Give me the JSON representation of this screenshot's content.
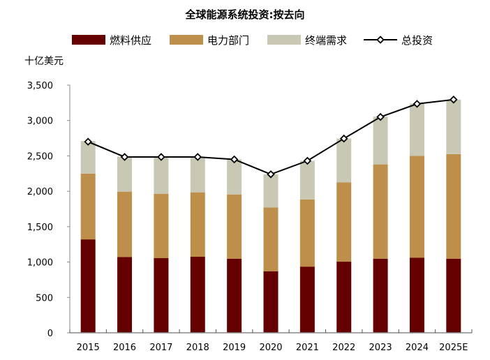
{
  "chart_data": {
    "type": "bar",
    "stacked": true,
    "title": "全球能源系统投资:按去向",
    "ylabel": "十亿美元",
    "ylim": [
      0,
      3500
    ],
    "yticks": [
      0,
      500,
      1000,
      1500,
      2000,
      2500,
      3000,
      3500
    ],
    "ytick_labels": [
      "0",
      "500",
      "1,000",
      "1,500",
      "2,000",
      "2,500",
      "3,000",
      "3,500"
    ],
    "grid": false,
    "legend_position": "top",
    "categories": [
      "2015",
      "2016",
      "2017",
      "2018",
      "2019",
      "2020",
      "2021",
      "2022",
      "2023",
      "2024",
      "2025E"
    ],
    "series": [
      {
        "name": "燃料供应",
        "type": "bar",
        "color": "#640000",
        "values": [
          1320,
          1070,
          1055,
          1075,
          1045,
          870,
          935,
          1005,
          1045,
          1060,
          1045
        ]
      },
      {
        "name": "电力部门",
        "type": "bar",
        "color": "#BE8F4B",
        "values": [
          930,
          925,
          910,
          910,
          910,
          900,
          950,
          1120,
          1335,
          1440,
          1480
        ]
      },
      {
        "name": "终端需求",
        "type": "bar",
        "color": "#C8C8B4",
        "values": [
          460,
          495,
          520,
          500,
          495,
          470,
          545,
          620,
          675,
          740,
          770
        ]
      },
      {
        "name": "总投资",
        "type": "line",
        "color": "#000000",
        "marker": "diamond",
        "values": [
          2700,
          2485,
          2485,
          2485,
          2450,
          2240,
          2430,
          2745,
          3050,
          3235,
          3295
        ]
      }
    ]
  }
}
